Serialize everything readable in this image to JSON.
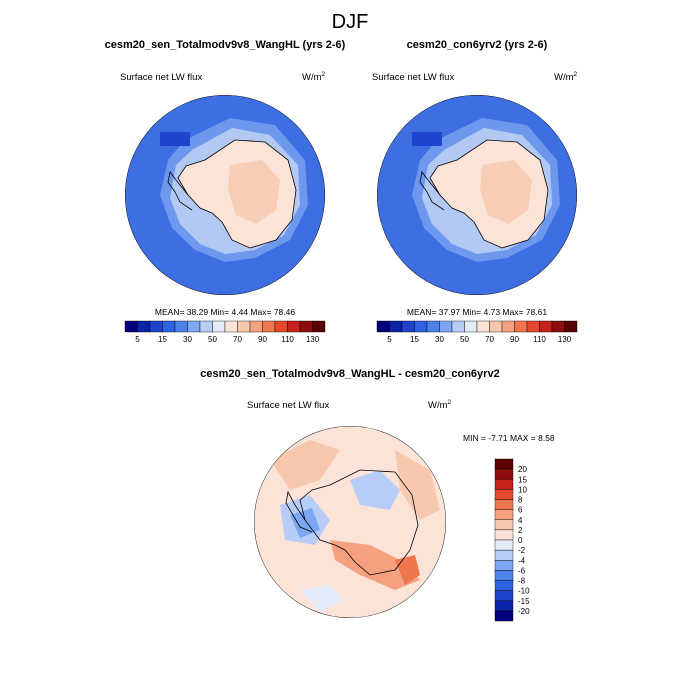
{
  "main_title": "DJF",
  "panels": [
    {
      "title": "cesm20_sen_Totalmodv9v8_WangHL (yrs 2-6)",
      "left_label": "Surface net LW flux",
      "units_base": "W/m",
      "units_exp": "2",
      "stats": {
        "mean_label": "MEAN=",
        "mean": "38.29",
        "min_label": "Min=",
        "min": "4.44",
        "max_label": "Max=",
        "max": "78.46"
      }
    },
    {
      "title": "cesm20_con6yrv2 (yrs 2-6)",
      "left_label": "Surface net LW flux",
      "units_base": "W/m",
      "units_exp": "2",
      "stats": {
        "mean_label": "MEAN=",
        "mean": "37.97",
        "min_label": "Min=",
        "min": "4.73",
        "max_label": "Max=",
        "max": "78.61"
      }
    },
    {
      "title": "cesm20_sen_Totalmodv9v8_WangHL - cesm20_con6yrv2",
      "left_label": "Surface net LW flux",
      "units_base": "W/m",
      "units_exp": "2",
      "stats_text": "MIN =  -7.71 MAX =   8.58"
    }
  ],
  "colors": {
    "abs": [
      "#00007f",
      "#0a22a8",
      "#1f43cc",
      "#2e62e0",
      "#4c81ea",
      "#7ea6f2",
      "#b7cdf7",
      "#e4ebf8",
      "#fbe4d7",
      "#f8c8ae",
      "#f5a07e",
      "#ef774f",
      "#e24a2b",
      "#c4221a",
      "#8d0c0c",
      "#5a0000"
    ],
    "diff": [
      "#00007f",
      "#0a22a8",
      "#1f43cc",
      "#2e62e0",
      "#4c81ea",
      "#7ea6f2",
      "#b7cdf7",
      "#e4ebf8",
      "#fbe4d7",
      "#f8c8ae",
      "#f5a07e",
      "#ef774f",
      "#e24a2b",
      "#c4221a",
      "#8d0c0c",
      "#5a0000"
    ],
    "land": "#fbe4d7",
    "coast": "#000000"
  },
  "chart_data": [
    {
      "type": "heatmap",
      "title": "cesm20_sen_Totalmodv9v8_WangHL (yrs 2-6)",
      "variable": "Surface net LW flux",
      "units": "W/m2",
      "projection": "south polar stereographic",
      "colorbar_labels": [
        "5",
        "15",
        "30",
        "50",
        "70",
        "90",
        "110",
        "130"
      ],
      "colorbar_levels": [
        5,
        10,
        15,
        20,
        30,
        40,
        50,
        60,
        70,
        80,
        90,
        100,
        110,
        120,
        130
      ],
      "mean": 38.29,
      "min": 4.44,
      "max": 78.46
    },
    {
      "type": "heatmap",
      "title": "cesm20_con6yrv2 (yrs 2-6)",
      "variable": "Surface net LW flux",
      "units": "W/m2",
      "projection": "south polar stereographic",
      "colorbar_labels": [
        "5",
        "15",
        "30",
        "50",
        "70",
        "90",
        "110",
        "130"
      ],
      "colorbar_levels": [
        5,
        10,
        15,
        20,
        30,
        40,
        50,
        60,
        70,
        80,
        90,
        100,
        110,
        120,
        130
      ],
      "mean": 37.97,
      "min": 4.73,
      "max": 78.61
    },
    {
      "type": "heatmap",
      "title": "cesm20_sen_Totalmodv9v8_WangHL - cesm20_con6yrv2",
      "variable": "Surface net LW flux",
      "units": "W/m2",
      "projection": "south polar stereographic",
      "colorbar_labels": [
        "20",
        "15",
        "10",
        "8",
        "6",
        "4",
        "2",
        "0",
        "-2",
        "-4",
        "-6",
        "-8",
        "-10",
        "-15",
        "-20"
      ],
      "colorbar_levels": [
        -20,
        -15,
        -10,
        -8,
        -6,
        -4,
        -2,
        0,
        2,
        4,
        6,
        8,
        10,
        15,
        20
      ],
      "min": -7.71,
      "max": 8.58
    }
  ]
}
